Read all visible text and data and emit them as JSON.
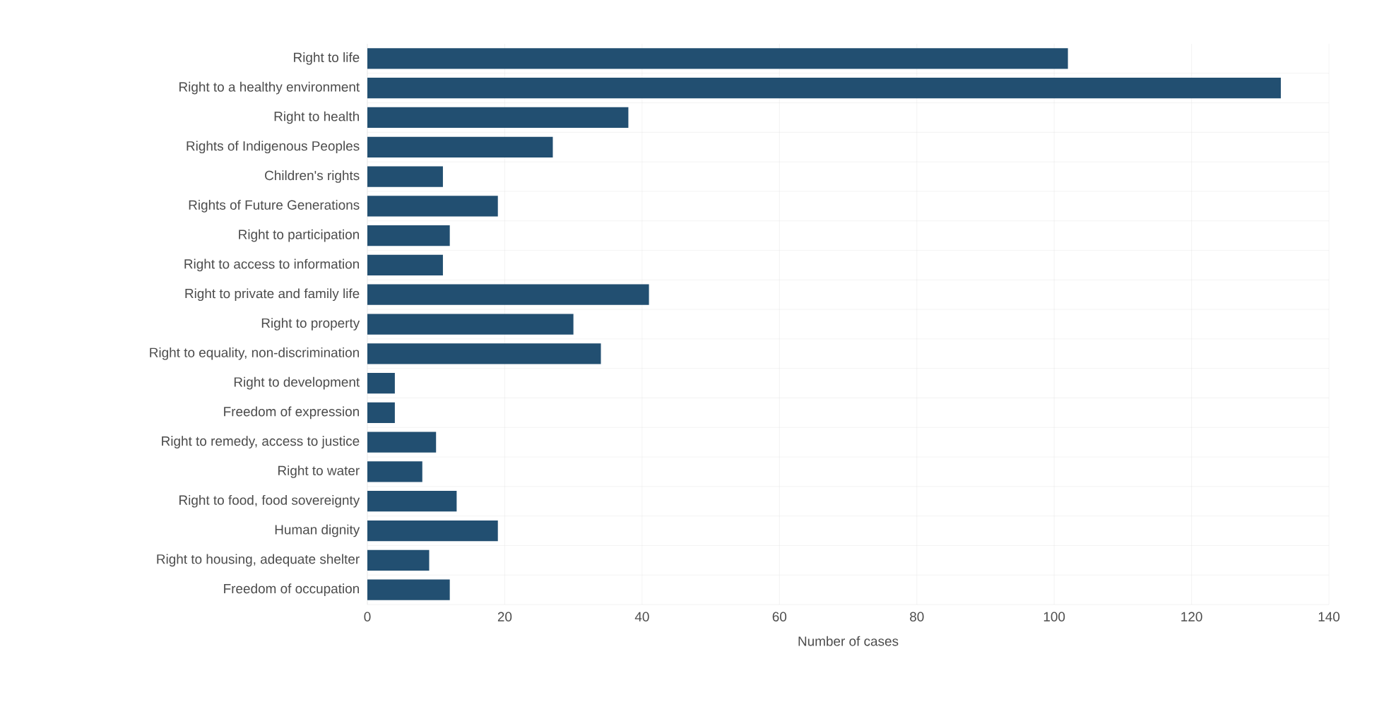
{
  "chart_data": {
    "type": "bar",
    "orientation": "horizontal",
    "xlabel": "Number of cases",
    "color": "#224f71",
    "categories": [
      "Right to life",
      "Right to a healthy environment",
      "Right to health",
      "Rights of Indigenous Peoples",
      "Children's rights",
      "Rights of Future Generations",
      "Right to participation",
      "Right to access to information",
      "Right to private and family life",
      "Right to property",
      "Right to equality, non-discrimination",
      "Right to development",
      "Freedom of expression",
      "Right to remedy, access to justice",
      "Right to water",
      "Right to food, food sovereignty",
      "Human dignity",
      "Right to housing, adequate shelter",
      "Freedom of occupation"
    ],
    "values": [
      102,
      133,
      38,
      27,
      11,
      19,
      12,
      11,
      41,
      30,
      34,
      4,
      4,
      10,
      8,
      13,
      19,
      9,
      12
    ],
    "xlim": [
      0,
      140
    ],
    "xticks": [
      0,
      20,
      40,
      60,
      80,
      100,
      120,
      140
    ],
    "grid": true
  }
}
